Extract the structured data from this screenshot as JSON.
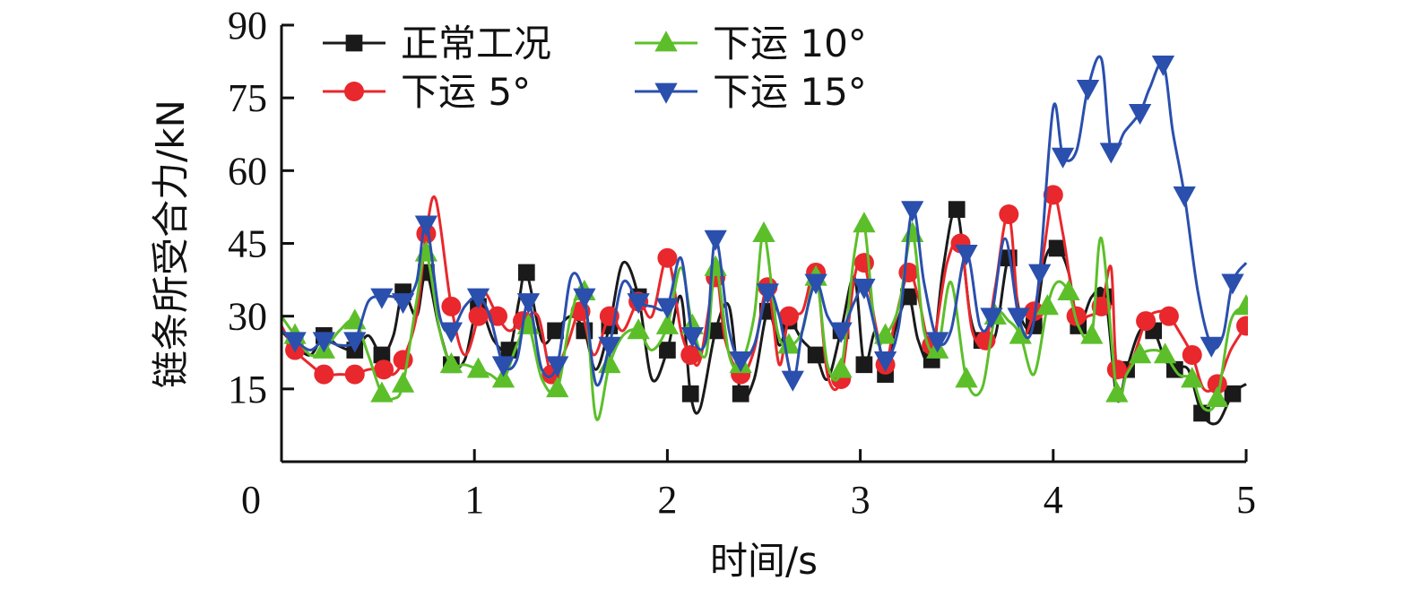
{
  "chart_data": {
    "type": "line",
    "xlabel": "时间/s",
    "ylabel": "链条所受合力/kN",
    "xlim": [
      0,
      5
    ],
    "ylim": [
      0,
      90
    ],
    "xticks": [
      "0",
      "1",
      "2",
      "3",
      "4",
      "5"
    ],
    "yticks": [
      "15",
      "30",
      "45",
      "60",
      "75",
      "90"
    ],
    "legend_position": "top-left",
    "grid": false,
    "series": [
      {
        "name": "正常工况",
        "color": "#1a1a1a",
        "marker": "square",
        "x": [
          0.0,
          0.07,
          0.15,
          0.22,
          0.29,
          0.38,
          0.45,
          0.52,
          0.58,
          0.63,
          0.7,
          0.75,
          0.82,
          0.88,
          0.95,
          1.02,
          1.1,
          1.18,
          1.23,
          1.27,
          1.35,
          1.42,
          1.5,
          1.57,
          1.63,
          1.7,
          1.77,
          1.85,
          1.92,
          2.0,
          2.07,
          2.12,
          2.17,
          2.25,
          2.32,
          2.38,
          2.45,
          2.52,
          2.58,
          2.63,
          2.7,
          2.77,
          2.83,
          2.9,
          2.97,
          3.02,
          3.08,
          3.13,
          3.18,
          3.25,
          3.3,
          3.37,
          3.43,
          3.5,
          3.57,
          3.63,
          3.7,
          3.77,
          3.83,
          3.9,
          3.96,
          4.02,
          4.08,
          4.13,
          4.2,
          4.27,
          4.33,
          4.38,
          4.45,
          4.52,
          4.58,
          4.63,
          4.7,
          4.77,
          4.85,
          4.93,
          5.0
        ],
        "y": [
          27,
          24,
          22,
          26,
          24,
          23,
          26,
          22,
          26,
          35,
          30,
          39,
          27,
          20,
          21,
          32,
          25,
          23,
          33,
          39,
          25,
          27,
          30,
          27,
          19,
          28,
          41,
          34,
          17,
          23,
          34,
          14,
          11,
          27,
          32,
          14,
          17,
          31,
          24,
          29,
          25,
          22,
          17,
          27,
          38,
          20,
          27,
          18,
          27,
          34,
          25,
          21,
          40,
          52,
          30,
          25,
          26,
          42,
          30,
          28,
          42,
          44,
          39,
          28,
          34,
          34,
          13,
          19,
          27,
          27,
          21,
          19,
          19,
          10,
          8,
          14,
          16
        ]
      },
      {
        "name": "下运 5°",
        "color": "#e8282c",
        "marker": "circle",
        "x": [
          0.0,
          0.07,
          0.15,
          0.22,
          0.3,
          0.38,
          0.45,
          0.53,
          0.58,
          0.63,
          0.7,
          0.75,
          0.8,
          0.88,
          0.95,
          1.02,
          1.05,
          1.12,
          1.18,
          1.25,
          1.33,
          1.4,
          1.48,
          1.55,
          1.62,
          1.7,
          1.77,
          1.85,
          1.92,
          2.0,
          2.07,
          2.12,
          2.17,
          2.25,
          2.3,
          2.38,
          2.45,
          2.52,
          2.58,
          2.63,
          2.7,
          2.77,
          2.83,
          2.9,
          2.97,
          3.02,
          3.08,
          3.13,
          3.18,
          3.25,
          3.3,
          3.37,
          3.45,
          3.52,
          3.58,
          3.65,
          3.7,
          3.77,
          3.83,
          3.9,
          3.95,
          4.0,
          4.05,
          4.12,
          4.18,
          4.25,
          4.3,
          4.33,
          4.4,
          4.48,
          4.55,
          4.6,
          4.65,
          4.72,
          4.78,
          4.85,
          4.92,
          5.0
        ],
        "y": [
          28,
          23,
          20,
          18,
          18,
          18,
          19,
          19,
          18,
          21,
          30,
          47,
          54,
          32,
          22,
          30,
          35,
          30,
          27,
          29,
          30,
          18,
          24,
          31,
          22,
          30,
          27,
          33,
          30,
          42,
          27,
          22,
          21,
          38,
          25,
          18,
          23,
          36,
          20,
          30,
          31,
          39,
          18,
          17,
          38,
          41,
          28,
          20,
          29,
          39,
          34,
          24,
          41,
          45,
          27,
          25,
          36,
          51,
          27,
          31,
          43,
          55,
          47,
          30,
          30,
          32,
          40,
          19,
          20,
          29,
          31,
          30,
          27,
          22,
          15,
          16,
          23,
          28
        ]
      },
      {
        "name": "下运 10°",
        "color": "#5cbf2a",
        "marker": "triangle-up",
        "x": [
          0.0,
          0.07,
          0.15,
          0.22,
          0.3,
          0.38,
          0.45,
          0.52,
          0.58,
          0.63,
          0.7,
          0.75,
          0.82,
          0.88,
          0.95,
          1.02,
          1.08,
          1.15,
          1.22,
          1.28,
          1.35,
          1.43,
          1.5,
          1.57,
          1.63,
          1.7,
          1.77,
          1.85,
          1.92,
          2.0,
          2.07,
          2.13,
          2.2,
          2.25,
          2.32,
          2.38,
          2.45,
          2.5,
          2.57,
          2.63,
          2.7,
          2.77,
          2.83,
          2.9,
          2.97,
          3.02,
          3.08,
          3.13,
          3.2,
          3.27,
          3.33,
          3.4,
          3.47,
          3.55,
          3.63,
          3.7,
          3.77,
          3.83,
          3.9,
          3.97,
          4.02,
          4.08,
          4.13,
          4.2,
          4.25,
          4.33,
          4.38,
          4.45,
          4.52,
          4.58,
          4.65,
          4.72,
          4.78,
          4.85,
          4.92,
          5.0
        ],
        "y": [
          30,
          26,
          22,
          23,
          27,
          29,
          22,
          14,
          13,
          16,
          33,
          43,
          27,
          20,
          20,
          19,
          18,
          17,
          24,
          28,
          17,
          15,
          30,
          35,
          9,
          20,
          26,
          27,
          23,
          28,
          40,
          28,
          22,
          40,
          22,
          20,
          30,
          47,
          27,
          24,
          27,
          38,
          20,
          19,
          43,
          49,
          26,
          26,
          32,
          47,
          27,
          23,
          37,
          17,
          15,
          30,
          29,
          26,
          18,
          32,
          37,
          35,
          28,
          26,
          46,
          14,
          18,
          22,
          23,
          22,
          18,
          17,
          11,
          13,
          29,
          32
        ]
      },
      {
        "name": "下运 15°",
        "color": "#2a4fad",
        "marker": "triangle-down",
        "x": [
          0.0,
          0.07,
          0.15,
          0.22,
          0.3,
          0.38,
          0.45,
          0.52,
          0.58,
          0.63,
          0.7,
          0.75,
          0.82,
          0.88,
          0.95,
          1.02,
          1.08,
          1.15,
          1.22,
          1.28,
          1.35,
          1.43,
          1.5,
          1.57,
          1.63,
          1.7,
          1.77,
          1.85,
          1.92,
          2.0,
          2.07,
          2.13,
          2.2,
          2.25,
          2.32,
          2.38,
          2.45,
          2.52,
          2.58,
          2.65,
          2.7,
          2.77,
          2.83,
          2.9,
          2.97,
          3.02,
          3.08,
          3.13,
          3.2,
          3.27,
          3.33,
          3.4,
          3.47,
          3.55,
          3.62,
          3.68,
          3.75,
          3.82,
          3.88,
          3.93,
          4.0,
          4.05,
          4.12,
          4.18,
          4.25,
          4.3,
          4.37,
          4.45,
          4.5,
          4.57,
          4.62,
          4.68,
          4.75,
          4.82,
          4.88,
          4.93,
          5.0
        ],
        "y": [
          27,
          25,
          23,
          25,
          24,
          25,
          33,
          34,
          34,
          33,
          37,
          49,
          30,
          27,
          32,
          34,
          30,
          20,
          21,
          33,
          19,
          20,
          38,
          34,
          16,
          24,
          37,
          33,
          32,
          32,
          42,
          26,
          25,
          46,
          27,
          21,
          24,
          35,
          30,
          17,
          27,
          37,
          30,
          27,
          33,
          36,
          27,
          21,
          28,
          52,
          37,
          25,
          27,
          43,
          28,
          30,
          46,
          30,
          26,
          39,
          73,
          63,
          64,
          77,
          83,
          64,
          68,
          72,
          77,
          82,
          68,
          55,
          35,
          24,
          26,
          37,
          41
        ]
      }
    ]
  }
}
